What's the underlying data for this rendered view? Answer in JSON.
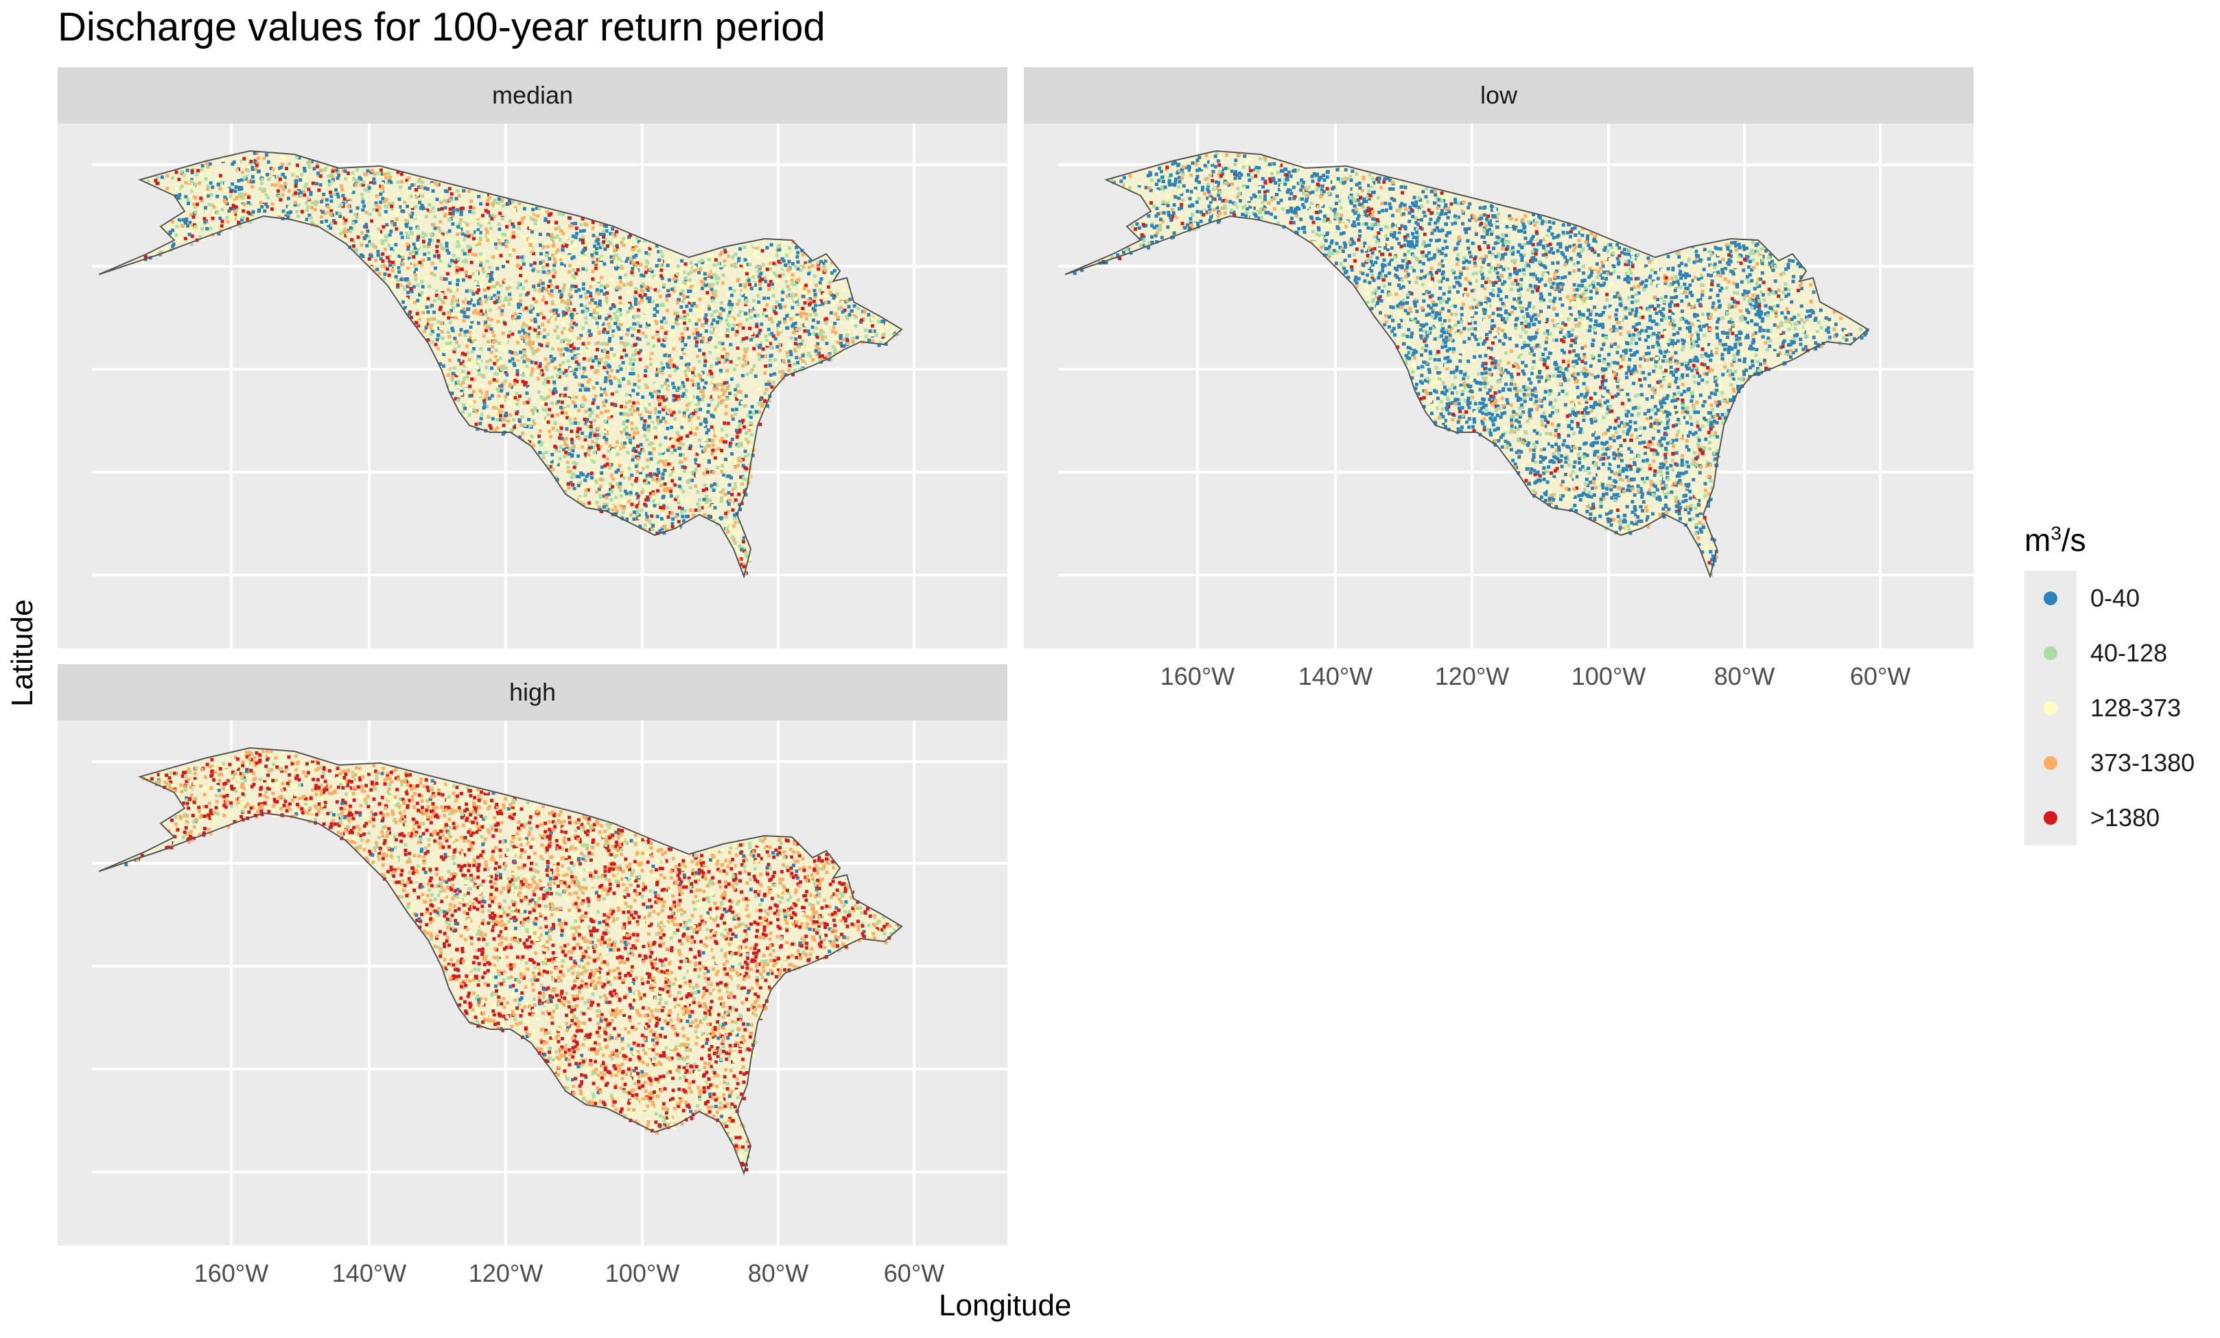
{
  "title": "Discharge values for 100-year return period",
  "x_axis_label": "Longitude",
  "y_axis_label": "Latitude",
  "x_tick_labels": [
    "160°W",
    "140°W",
    "120°W",
    "100°W",
    "80°W",
    "60°W"
  ],
  "legend": {
    "title_base": "m",
    "title_sup": "3",
    "title_rest": "/s",
    "items": [
      {
        "label": "0-40",
        "color": "#2b83ba"
      },
      {
        "label": "40-128",
        "color": "#abdda4"
      },
      {
        "label": "128-373",
        "color": "#ffffbf"
      },
      {
        "label": "373-1380",
        "color": "#fdae61"
      },
      {
        "label": ">1380",
        "color": "#d7191c"
      }
    ]
  },
  "panels": [
    {
      "label": "median",
      "shares": [
        0.25,
        0.22,
        0.22,
        0.19,
        0.12
      ]
    },
    {
      "label": "low",
      "shares": [
        0.52,
        0.16,
        0.16,
        0.11,
        0.05
      ]
    },
    {
      "label": "high",
      "shares": [
        0.04,
        0.12,
        0.18,
        0.32,
        0.34
      ]
    }
  ],
  "colors": {
    "land_outline": "#555555",
    "panel_bg": "#ebebeb",
    "grid": "#ffffff"
  }
}
